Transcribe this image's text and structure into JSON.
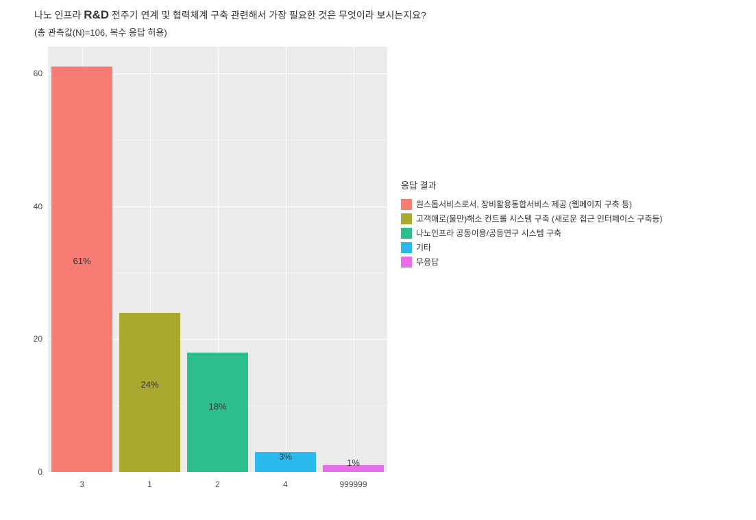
{
  "title": {
    "main_pre": "나노 인프라",
    "main_rd": "R&D",
    "main_post": "전주기 연계 및 협력체계 구축 관련해서 가장 필요한 것은 무엇이라 보시는지요?",
    "sub": "(총 관측값(N)=106, 복수 응답 허용)"
  },
  "chart": {
    "type": "bar",
    "background_color": "#ebebeb",
    "grid_color": "#ffffff",
    "y_axis": {
      "min": 0,
      "max": 64,
      "ticks": [
        0,
        20,
        40,
        60
      ],
      "minor_ticks": [
        10,
        30,
        50
      ]
    },
    "bars": [
      {
        "category": "3",
        "value": 61,
        "color": "#f77d74",
        "label": "61%",
        "label_y_offset": 300
      },
      {
        "category": "1",
        "value": 24,
        "color": "#a9a82f",
        "label": "24%",
        "label_y_offset": 120
      },
      {
        "category": "2",
        "value": 18,
        "color": "#2ebe8b",
        "label": "18%",
        "label_y_offset": 88
      },
      {
        "category": "4",
        "value": 3,
        "color": "#2bbaed",
        "label": "3%",
        "label_y_offset": 15
      },
      {
        "category": "999999",
        "value": 1,
        "color": "#e66ee6",
        "label": "1%",
        "label_y_offset": 6
      }
    ],
    "bar_width": 0.9
  },
  "legend": {
    "title": "응답 결과",
    "items": [
      {
        "color": "#f77d74",
        "label": "원스톱서비스로서, 장비활용통합서비스 제공 (웹페이지 구축 등)"
      },
      {
        "color": "#a9a82f",
        "label": "고객애로(불만)해소 컨트롤 시스템 구축 (새로운 접근 인터페이스 구축등)"
      },
      {
        "color": "#2ebe8b",
        "label": "나노인프라 공동이용/공동연구 시스템 구축"
      },
      {
        "color": "#2bbaed",
        "label": "기타"
      },
      {
        "color": "#e66ee6",
        "label": "무응답"
      }
    ]
  }
}
